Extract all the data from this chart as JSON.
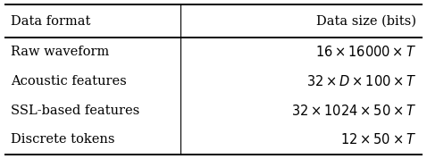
{
  "col_headers": [
    "Data format",
    "Data size (bits)"
  ],
  "rows": [
    [
      "Raw waveform",
      "$16 \\times 16000 \\times T$"
    ],
    [
      "Acoustic features",
      "$32 \\times D \\times 100 \\times T$"
    ],
    [
      "SSL-based features",
      "$32 \\times 1024 \\times 50 \\times T$"
    ],
    [
      "Discrete tokens",
      "$12 \\times 50 \\times T$"
    ]
  ],
  "col_split": 0.42,
  "bg_color": "#ffffff",
  "text_color": "#000000",
  "font_size": 10.5,
  "header_font_size": 10.5,
  "thick_lw": 1.4,
  "thin_lw": 0.8
}
